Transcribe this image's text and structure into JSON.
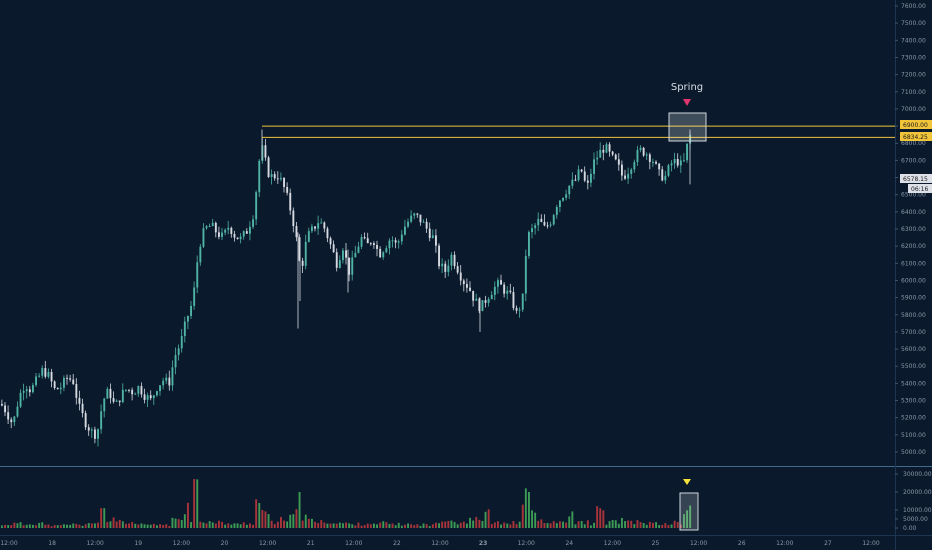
{
  "chart_data": {
    "type": "candlestick",
    "title": "",
    "annotation": "Spring",
    "price_axis": {
      "range": [
        4900,
        7650
      ],
      "ticks": [
        5000,
        5100,
        5200,
        5300,
        5400,
        5500,
        5600,
        5700,
        5800,
        5900,
        6000,
        6100,
        6200,
        6300,
        6400,
        6500,
        6600,
        6700,
        6800,
        6900,
        7000,
        7100,
        7200,
        7300,
        7400,
        7500,
        7600
      ],
      "tick_labels": [
        "5000.00",
        "5100.00",
        "5200.00",
        "5300.00",
        "5400.00",
        "5500.00",
        "5600.00",
        "5700.00",
        "5800.00",
        "5900.00",
        "6000.00",
        "6100.00",
        "6200.00",
        "6300.00",
        "6400.00",
        "6500.00",
        "6600.00",
        "6700.00",
        "6800.00",
        "6900.00",
        "7000.00",
        "7100.00",
        "7200.00",
        "7300.00",
        "7400.00",
        "7500.00",
        "7600.00"
      ]
    },
    "volume_axis": {
      "range": [
        0,
        32000
      ],
      "ticks": [
        0,
        5000,
        10000,
        20000,
        30000
      ],
      "tick_labels": [
        "0.00",
        "5000.00",
        "10000.00",
        "20000.00",
        "30000.00"
      ]
    },
    "time_axis": {
      "labels": [
        "12:00",
        "18",
        "12:00",
        "19",
        "12:00",
        "20",
        "12:00",
        "21",
        "12:00",
        "22",
        "12:00",
        "23",
        "12:00",
        "24",
        "12:00",
        "25",
        "12:00",
        "26",
        "12:00",
        "27",
        "12:00"
      ],
      "bold_index": 11
    },
    "levels": [
      {
        "price": 6900,
        "label": "6900.00",
        "color": "#f2c43a"
      },
      {
        "price": 6834.25,
        "label": "6834.25",
        "color": "#f2c43a"
      }
    ],
    "last_price": {
      "price": 6578.15,
      "label": "6578.15",
      "countdown": "06:16"
    },
    "colors": {
      "background": "#0a1a2c",
      "up": "#4fb3a6",
      "down": "#d6d9e0",
      "vol_up": "#3d9b55",
      "vol_down": "#a9343a",
      "level": "#f2c43a",
      "marker_spring": "#e0356e",
      "marker_volume": "#f7e23c",
      "grid_text": "#8a97a8",
      "separator": "#3f6a8a"
    },
    "candle_path_points": [
      [
        0,
        5280
      ],
      [
        5,
        5240
      ],
      [
        12,
        5160
      ],
      [
        18,
        5320
      ],
      [
        24,
        5400
      ],
      [
        30,
        5360
      ],
      [
        36,
        5420
      ],
      [
        42,
        5480
      ],
      [
        48,
        5440
      ],
      [
        54,
        5360
      ],
      [
        60,
        5380
      ],
      [
        66,
        5430
      ],
      [
        72,
        5420
      ],
      [
        78,
        5260
      ],
      [
        84,
        5180
      ],
      [
        90,
        5120
      ],
      [
        96,
        5100
      ],
      [
        102,
        5300
      ],
      [
        108,
        5360
      ],
      [
        114,
        5260
      ],
      [
        120,
        5330
      ],
      [
        126,
        5370
      ],
      [
        132,
        5350
      ],
      [
        138,
        5380
      ],
      [
        144,
        5330
      ],
      [
        150,
        5300
      ],
      [
        156,
        5380
      ],
      [
        162,
        5420
      ],
      [
        168,
        5400
      ],
      [
        174,
        5560
      ],
      [
        180,
        5640
      ],
      [
        186,
        5780
      ],
      [
        192,
        5880
      ],
      [
        198,
        6200
      ],
      [
        204,
        6300
      ],
      [
        210,
        6320
      ],
      [
        216,
        6280
      ],
      [
        222,
        6250
      ],
      [
        228,
        6320
      ],
      [
        234,
        6260
      ],
      [
        240,
        6240
      ],
      [
        246,
        6290
      ],
      [
        252,
        6380
      ],
      [
        256,
        6560
      ],
      [
        260,
        6800
      ],
      [
        264,
        6700
      ],
      [
        268,
        6620
      ],
      [
        272,
        6600
      ],
      [
        276,
        6620
      ],
      [
        282,
        6560
      ],
      [
        288,
        6450
      ],
      [
        294,
        6300
      ],
      [
        300,
        6050
      ],
      [
        306,
        6250
      ],
      [
        312,
        6300
      ],
      [
        318,
        6350
      ],
      [
        324,
        6300
      ],
      [
        330,
        6200
      ],
      [
        336,
        6100
      ],
      [
        342,
        6200
      ],
      [
        348,
        6050
      ],
      [
        354,
        6150
      ],
      [
        360,
        6250
      ],
      [
        366,
        6200
      ],
      [
        372,
        6250
      ],
      [
        378,
        6150
      ],
      [
        384,
        6200
      ],
      [
        390,
        6250
      ],
      [
        396,
        6200
      ],
      [
        402,
        6300
      ],
      [
        408,
        6350
      ],
      [
        414,
        6380
      ],
      [
        420,
        6350
      ],
      [
        426,
        6300
      ],
      [
        432,
        6250
      ],
      [
        438,
        6100
      ],
      [
        444,
        6050
      ],
      [
        450,
        6150
      ],
      [
        456,
        6080
      ],
      [
        462,
        6000
      ],
      [
        468,
        5960
      ],
      [
        474,
        5880
      ],
      [
        480,
        5840
      ],
      [
        486,
        5900
      ],
      [
        492,
        5950
      ],
      [
        498,
        5980
      ],
      [
        504,
        5940
      ],
      [
        510,
        5900
      ],
      [
        516,
        5800
      ],
      [
        522,
        5900
      ],
      [
        526,
        6250
      ],
      [
        532,
        6300
      ],
      [
        538,
        6350
      ],
      [
        544,
        6300
      ],
      [
        550,
        6350
      ],
      [
        556,
        6450
      ],
      [
        562,
        6500
      ],
      [
        568,
        6550
      ],
      [
        574,
        6580
      ],
      [
        580,
        6650
      ],
      [
        586,
        6530
      ],
      [
        592,
        6680
      ],
      [
        598,
        6740
      ],
      [
        604,
        6780
      ],
      [
        610,
        6720
      ],
      [
        616,
        6680
      ],
      [
        622,
        6600
      ],
      [
        628,
        6650
      ],
      [
        634,
        6720
      ],
      [
        640,
        6760
      ],
      [
        646,
        6740
      ],
      [
        652,
        6700
      ],
      [
        658,
        6620
      ],
      [
        664,
        6600
      ],
      [
        670,
        6680
      ],
      [
        676,
        6700
      ],
      [
        682,
        6660
      ],
      [
        686,
        6780
      ],
      [
        689,
        6860
      ],
      [
        692,
        6600
      ]
    ],
    "volume_profile": [
      [
        0,
        1500
      ],
      [
        8,
        2500
      ],
      [
        16,
        2800
      ],
      [
        24,
        2200
      ],
      [
        32,
        3000
      ],
      [
        40,
        3500
      ],
      [
        48,
        1800
      ],
      [
        56,
        1500
      ],
      [
        64,
        2000
      ],
      [
        72,
        2400
      ],
      [
        80,
        1800
      ],
      [
        88,
        3200
      ],
      [
        96,
        2600
      ],
      [
        104,
        11000
      ],
      [
        108,
        4500
      ],
      [
        112,
        6500
      ],
      [
        120,
        3800
      ],
      [
        128,
        2800
      ],
      [
        136,
        2100
      ],
      [
        144,
        2300
      ],
      [
        152,
        2000
      ],
      [
        160,
        2400
      ],
      [
        168,
        2100
      ],
      [
        174,
        4800
      ],
      [
        178,
        6200
      ],
      [
        186,
        14000
      ],
      [
        190,
        3500
      ],
      [
        196,
        27000
      ],
      [
        200,
        5000
      ],
      [
        206,
        4200
      ],
      [
        212,
        3200
      ],
      [
        218,
        3600
      ],
      [
        226,
        3000
      ],
      [
        234,
        2400
      ],
      [
        242,
        3200
      ],
      [
        250,
        3000
      ],
      [
        256,
        16000
      ],
      [
        262,
        10000
      ],
      [
        266,
        8000
      ],
      [
        272,
        3500
      ],
      [
        278,
        5200
      ],
      [
        286,
        4000
      ],
      [
        292,
        6500
      ],
      [
        298,
        20000
      ],
      [
        304,
        6500
      ],
      [
        310,
        5000
      ],
      [
        318,
        3800
      ],
      [
        326,
        4200
      ],
      [
        334,
        3000
      ],
      [
        342,
        3200
      ],
      [
        350,
        2400
      ],
      [
        358,
        2600
      ],
      [
        366,
        3000
      ],
      [
        374,
        2200
      ],
      [
        382,
        3200
      ],
      [
        390,
        2800
      ],
      [
        398,
        2400
      ],
      [
        406,
        2600
      ],
      [
        414,
        2000
      ],
      [
        422,
        2300
      ],
      [
        430,
        1800
      ],
      [
        438,
        3200
      ],
      [
        444,
        7000
      ],
      [
        450,
        5200
      ],
      [
        458,
        3500
      ],
      [
        466,
        4200
      ],
      [
        472,
        6500
      ],
      [
        480,
        4000
      ],
      [
        486,
        9000
      ],
      [
        494,
        3200
      ],
      [
        502,
        2800
      ],
      [
        510,
        3500
      ],
      [
        518,
        3000
      ],
      [
        524,
        22000
      ],
      [
        528,
        20000
      ],
      [
        534,
        8500
      ],
      [
        540,
        5200
      ],
      [
        546,
        3000
      ],
      [
        554,
        4200
      ],
      [
        562,
        3200
      ],
      [
        570,
        9200
      ],
      [
        576,
        3500
      ],
      [
        584,
        3800
      ],
      [
        592,
        2800
      ],
      [
        600,
        11000
      ],
      [
        606,
        3500
      ],
      [
        614,
        4200
      ],
      [
        622,
        5200
      ],
      [
        630,
        3500
      ],
      [
        638,
        4000
      ],
      [
        646,
        3200
      ],
      [
        654,
        2800
      ],
      [
        662,
        2600
      ],
      [
        670,
        3000
      ],
      [
        676,
        3400
      ],
      [
        684,
        7200
      ],
      [
        688,
        12500
      ],
      [
        691,
        9500
      ]
    ]
  }
}
